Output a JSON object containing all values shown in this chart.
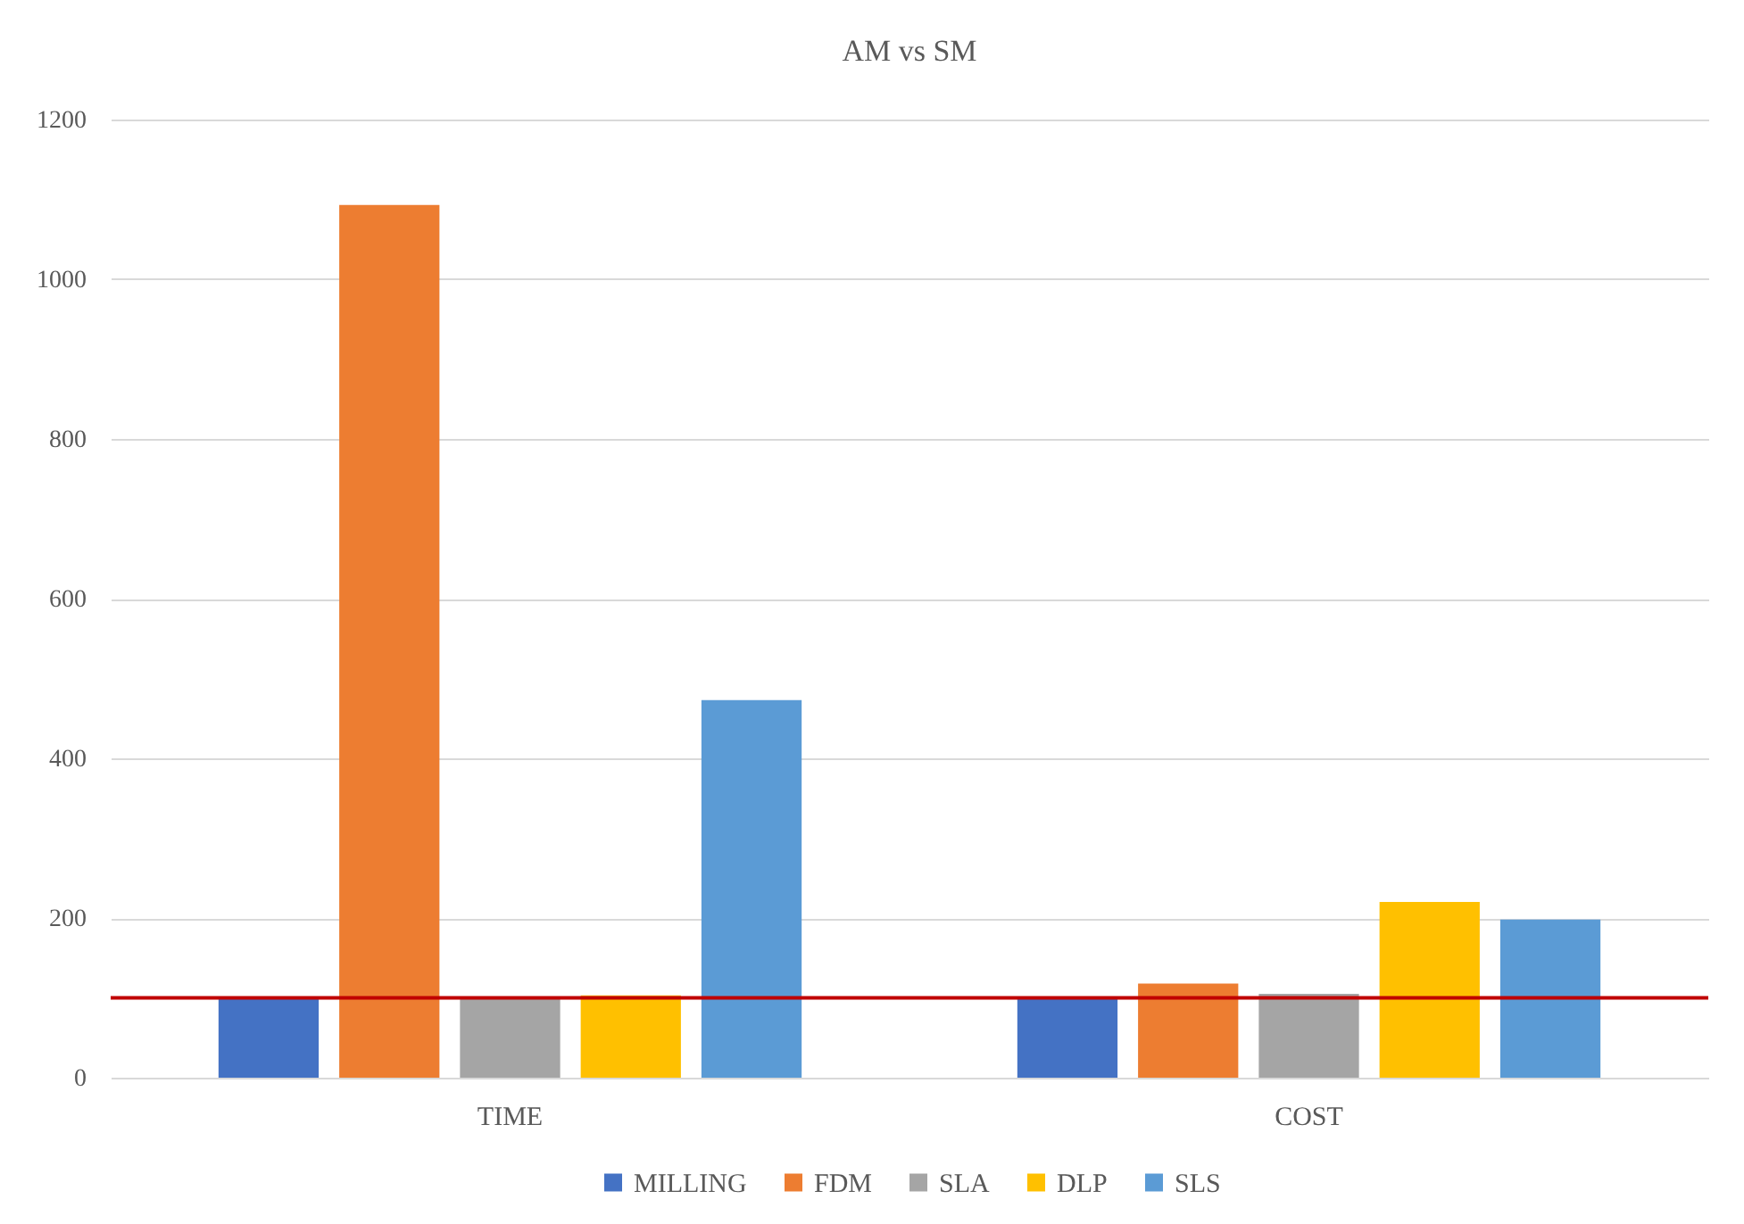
{
  "chart_data": {
    "type": "bar",
    "title": "AM vs SM",
    "categories": [
      "TIME",
      "COST"
    ],
    "series": [
      {
        "name": "MILLING",
        "color": "#4472c4",
        "values": [
          100,
          100
        ]
      },
      {
        "name": "FDM",
        "color": "#ed7d31",
        "values": [
          1093,
          118
        ]
      },
      {
        "name": "SLA",
        "color": "#a5a5a5",
        "values": [
          100,
          105
        ]
      },
      {
        "name": "DLP",
        "color": "#ffc000",
        "values": [
          103,
          220
        ]
      },
      {
        "name": "SLS",
        "color": "#5b9bd5",
        "values": [
          473,
          198
        ]
      }
    ],
    "ylim": [
      0,
      1200
    ],
    "yticks": [
      0,
      200,
      400,
      600,
      800,
      1000,
      1200
    ],
    "grid": "y",
    "legend": "bottom",
    "ref_lines": [
      {
        "axis": "y",
        "value": 100,
        "color": "#c00000"
      }
    ]
  }
}
